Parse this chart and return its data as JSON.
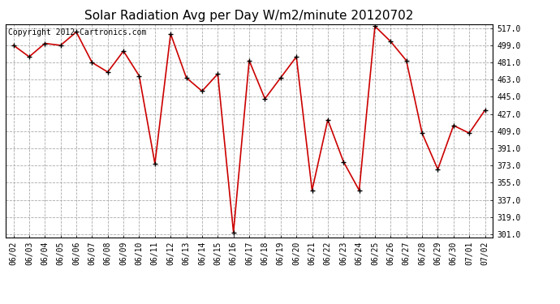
{
  "title": "Solar Radiation Avg per Day W/m2/minute 20120702",
  "copyright": "Copyright 2012 Cartronics.com",
  "dates": [
    "06/02",
    "06/03",
    "06/04",
    "06/05",
    "06/06",
    "06/07",
    "06/08",
    "06/09",
    "06/10",
    "06/11",
    "06/12",
    "06/13",
    "06/14",
    "06/15",
    "06/16",
    "06/17",
    "06/18",
    "06/19",
    "06/20",
    "06/21",
    "06/22",
    "06/23",
    "06/24",
    "06/25",
    "06/26",
    "06/27",
    "06/28",
    "06/29",
    "06/30",
    "07/01",
    "07/02"
  ],
  "values": [
    499,
    487,
    501,
    499,
    513,
    481,
    471,
    493,
    467,
    375,
    511,
    465,
    451,
    469,
    303,
    483,
    443,
    465,
    487,
    347,
    421,
    377,
    347,
    519,
    503,
    483,
    407,
    369,
    415,
    407,
    431
  ],
  "line_color": "#cc0000",
  "marker": "+",
  "marker_size": 5,
  "marker_color": "#000000",
  "background_color": "#ffffff",
  "grid_color": "#aaaaaa",
  "ylim_min": 298,
  "ylim_max": 521,
  "yticks": [
    301.0,
    319.0,
    337.0,
    355.0,
    373.0,
    391.0,
    409.0,
    427.0,
    445.0,
    463.0,
    481.0,
    499.0,
    517.0
  ],
  "title_fontsize": 11,
  "copyright_fontsize": 7,
  "tick_fontsize": 7
}
